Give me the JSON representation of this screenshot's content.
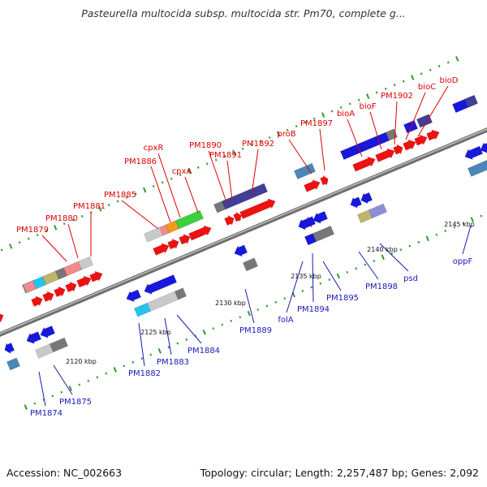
{
  "title": "Pasteurella multocida subsp. multocida str. Pm70, complete g...",
  "accession": "Accession: NC_002663",
  "topology": "Topology: circular; Length: 2,257,487 bp; Genes: 2,092",
  "colors": {
    "forward_label": "#dd0000",
    "reverse_label": "#1a1ab4",
    "backbone": "#8a8a8a",
    "tick_dots": "#2e9a2e"
  },
  "scale_ticks": [
    "2120 kbp",
    "2125 kbp",
    "2130 kbp",
    "2135 kbp",
    "2140 kbp",
    "2145 kbp"
  ],
  "forward_labels": [
    "PM1879",
    "PM1880",
    "PM1881",
    "PM1885",
    "PM1886",
    "cpxR",
    "cpxA",
    "PM1890",
    "PM1891",
    "PM1892",
    "proB",
    "PM1897",
    "bioA",
    "bioF",
    "PM1902",
    "bioC",
    "bioD"
  ],
  "reverse_labels": [
    "PM1874",
    "PM1875",
    "PM1882",
    "PM1883",
    "PM1884",
    "PM1889",
    "folA",
    "PM1894",
    "PM1895",
    "PM1898",
    "psd",
    "oppF"
  ]
}
